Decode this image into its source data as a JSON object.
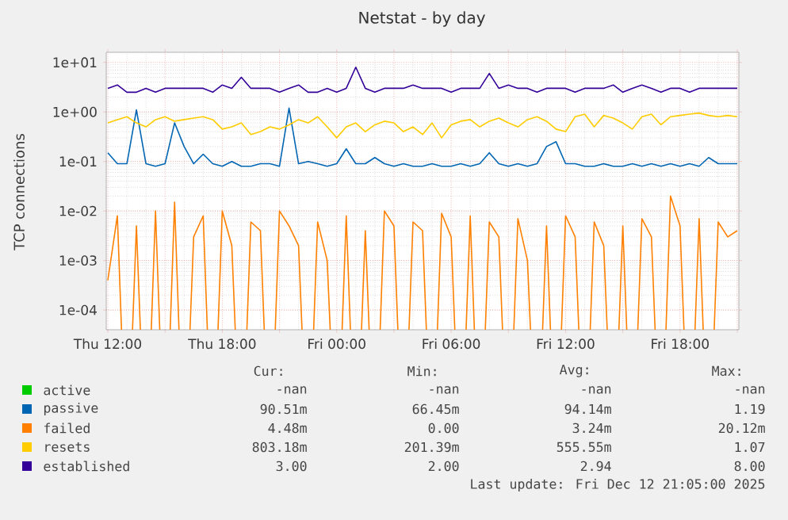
{
  "chart_data": {
    "type": "line",
    "title": "Netstat - by day",
    "ylabel": "TCP connections",
    "log": "y",
    "grid": true,
    "legend": "bottom",
    "x": [
      "2025-12-11T12:00",
      "2025-12-11T12:30",
      "2025-12-11T13:00",
      "2025-12-11T13:30",
      "2025-12-11T14:00",
      "2025-12-11T14:30",
      "2025-12-11T15:00",
      "2025-12-11T15:30",
      "2025-12-11T16:00",
      "2025-12-11T16:30",
      "2025-12-11T17:00",
      "2025-12-11T17:30",
      "2025-12-11T18:00",
      "2025-12-11T18:30",
      "2025-12-11T19:00",
      "2025-12-11T19:30",
      "2025-12-11T20:00",
      "2025-12-11T20:30",
      "2025-12-11T21:00",
      "2025-12-11T21:30",
      "2025-12-11T22:00",
      "2025-12-11T22:30",
      "2025-12-11T23:00",
      "2025-12-11T23:30",
      "2025-12-12T00:00",
      "2025-12-12T00:30",
      "2025-12-12T01:00",
      "2025-12-12T01:30",
      "2025-12-12T02:00",
      "2025-12-12T02:30",
      "2025-12-12T03:00",
      "2025-12-12T03:30",
      "2025-12-12T04:00",
      "2025-12-12T04:30",
      "2025-12-12T05:00",
      "2025-12-12T05:30",
      "2025-12-12T06:00",
      "2025-12-12T06:30",
      "2025-12-12T07:00",
      "2025-12-12T07:30",
      "2025-12-12T08:00",
      "2025-12-12T08:30",
      "2025-12-12T09:00",
      "2025-12-12T09:30",
      "2025-12-12T10:00",
      "2025-12-12T10:30",
      "2025-12-12T11:00",
      "2025-12-12T11:30",
      "2025-12-12T12:00",
      "2025-12-12T12:30",
      "2025-12-12T13:00",
      "2025-12-12T13:30",
      "2025-12-12T14:00",
      "2025-12-12T14:30",
      "2025-12-12T15:00",
      "2025-12-12T15:30",
      "2025-12-12T16:00",
      "2025-12-12T16:30",
      "2025-12-12T17:00",
      "2025-12-12T17:30",
      "2025-12-12T18:00",
      "2025-12-12T18:30",
      "2025-12-12T19:00",
      "2025-12-12T19:30",
      "2025-12-12T20:00",
      "2025-12-12T20:30",
      "2025-12-12T21:00"
    ],
    "xlim": [
      "2025-12-11T11:55",
      "2025-12-12T21:05"
    ],
    "xticks": [
      {
        "value": "2025-12-11T12:00",
        "label": "Thu 12:00"
      },
      {
        "value": "2025-12-11T15:00",
        "label": null
      },
      {
        "value": "2025-12-11T18:00",
        "label": "Thu 18:00"
      },
      {
        "value": "2025-12-11T21:00",
        "label": null
      },
      {
        "value": "2025-12-12T00:00",
        "label": "Fri 00:00"
      },
      {
        "value": "2025-12-12T03:00",
        "label": null
      },
      {
        "value": "2025-12-12T06:00",
        "label": "Fri 06:00"
      },
      {
        "value": "2025-12-12T09:00",
        "label": null
      },
      {
        "value": "2025-12-12T12:00",
        "label": "Fri 12:00"
      },
      {
        "value": "2025-12-12T15:00",
        "label": null
      },
      {
        "value": "2025-12-12T18:00",
        "label": "Fri 18:00"
      },
      {
        "value": "2025-12-12T21:00",
        "label": null
      }
    ],
    "ylim": [
      4e-05,
      16
    ],
    "yticks": [
      {
        "value": 0.0001,
        "label": "1e-04"
      },
      {
        "value": 0.001,
        "label": "1e-03"
      },
      {
        "value": 0.01,
        "label": "1e-02"
      },
      {
        "value": 0.1,
        "label": "1e-01"
      },
      {
        "value": 1,
        "label": "1e+00"
      },
      {
        "value": 10,
        "label": "1e+01"
      }
    ],
    "series": [
      {
        "name": "active",
        "color": "#00cc00",
        "values": [
          null,
          null,
          null,
          null,
          null,
          null,
          null,
          null,
          null,
          null,
          null,
          null,
          null,
          null,
          null,
          null,
          null,
          null,
          null,
          null,
          null,
          null,
          null,
          null,
          null,
          null,
          null,
          null,
          null,
          null,
          null,
          null,
          null,
          null,
          null,
          null,
          null,
          null,
          null,
          null,
          null,
          null,
          null,
          null,
          null,
          null,
          null,
          null,
          null,
          null,
          null,
          null,
          null,
          null,
          null,
          null,
          null,
          null,
          null,
          null,
          null,
          null,
          null,
          null,
          null,
          null,
          null
        ]
      },
      {
        "name": "passive",
        "color": "#0066b3",
        "values": [
          0.15,
          0.09,
          0.09,
          1.1,
          0.09,
          0.08,
          0.09,
          0.6,
          0.2,
          0.09,
          0.14,
          0.09,
          0.08,
          0.1,
          0.08,
          0.08,
          0.09,
          0.09,
          0.08,
          1.2,
          0.09,
          0.1,
          0.09,
          0.08,
          0.09,
          0.18,
          0.09,
          0.09,
          0.12,
          0.09,
          0.08,
          0.09,
          0.08,
          0.08,
          0.09,
          0.08,
          0.08,
          0.09,
          0.08,
          0.09,
          0.15,
          0.09,
          0.08,
          0.09,
          0.08,
          0.09,
          0.2,
          0.25,
          0.09,
          0.09,
          0.08,
          0.08,
          0.09,
          0.08,
          0.08,
          0.09,
          0.08,
          0.09,
          0.08,
          0.09,
          0.08,
          0.09,
          0.08,
          0.12,
          0.09,
          0.09,
          0.09
        ]
      },
      {
        "name": "failed",
        "color": "#ff8000",
        "values": [
          0.0004,
          0.008,
          null,
          0.005,
          null,
          0.01,
          null,
          0.015,
          null,
          0.003,
          0.008,
          null,
          0.01,
          0.002,
          null,
          0.006,
          0.004,
          null,
          0.01,
          0.005,
          0.002,
          null,
          0.006,
          0.001,
          null,
          0.008,
          null,
          0.004,
          null,
          0.01,
          0.005,
          null,
          0.006,
          0.004,
          null,
          0.009,
          0.003,
          null,
          0.008,
          null,
          0.006,
          0.003,
          null,
          0.007,
          0.001,
          null,
          0.005,
          null,
          0.008,
          0.003,
          null,
          0.006,
          0.002,
          null,
          0.005,
          null,
          0.007,
          0.003,
          null,
          0.02,
          0.005,
          null,
          0.007,
          null,
          0.006,
          0.003,
          0.004
        ]
      },
      {
        "name": "resets",
        "color": "#ffcc00",
        "values": [
          0.6,
          0.7,
          0.8,
          0.6,
          0.5,
          0.7,
          0.8,
          0.65,
          0.7,
          0.75,
          0.8,
          0.7,
          0.45,
          0.5,
          0.6,
          0.35,
          0.4,
          0.5,
          0.45,
          0.55,
          0.7,
          0.6,
          0.8,
          0.5,
          0.3,
          0.5,
          0.6,
          0.4,
          0.55,
          0.65,
          0.6,
          0.4,
          0.5,
          0.35,
          0.6,
          0.3,
          0.55,
          0.65,
          0.7,
          0.5,
          0.65,
          0.75,
          0.6,
          0.5,
          0.7,
          0.8,
          0.65,
          0.45,
          0.4,
          0.8,
          0.9,
          0.5,
          0.85,
          0.75,
          0.6,
          0.45,
          0.8,
          0.9,
          0.55,
          0.8,
          0.85,
          0.9,
          0.95,
          0.85,
          0.8,
          0.85,
          0.8
        ]
      },
      {
        "name": "established",
        "color": "#330099",
        "values": [
          3,
          3.5,
          2.5,
          2.5,
          3,
          2.5,
          3,
          3,
          3,
          3,
          3,
          2.5,
          3.5,
          3,
          5,
          3,
          3,
          3,
          2.5,
          3,
          3.5,
          2.5,
          2.5,
          3,
          2.5,
          3,
          8,
          3,
          2.5,
          3,
          3,
          3,
          3.5,
          3,
          3,
          3,
          2.5,
          3,
          3,
          3,
          6,
          3,
          3.5,
          3,
          3,
          2.5,
          3,
          3,
          3,
          2.5,
          3,
          3,
          3,
          3.5,
          2.5,
          3,
          3.5,
          3,
          2.5,
          3,
          3,
          2.5,
          3,
          3,
          3,
          3,
          3
        ]
      }
    ],
    "annotations": [
      "Cur:",
      "Min:",
      "Avg:",
      "Max:",
      "-nan",
      "-nan",
      "-nan",
      "-nan",
      "90.51m",
      "66.45m",
      "94.14m",
      "1.19",
      "4.48m",
      "0.00",
      "3.24m",
      "20.12m",
      "803.18m",
      "201.39m",
      "555.55m",
      "1.07",
      "3.00",
      "2.00",
      "2.94",
      "8.00",
      "Last update: Fri Dec 12 21:05:00 2025"
    ]
  }
}
